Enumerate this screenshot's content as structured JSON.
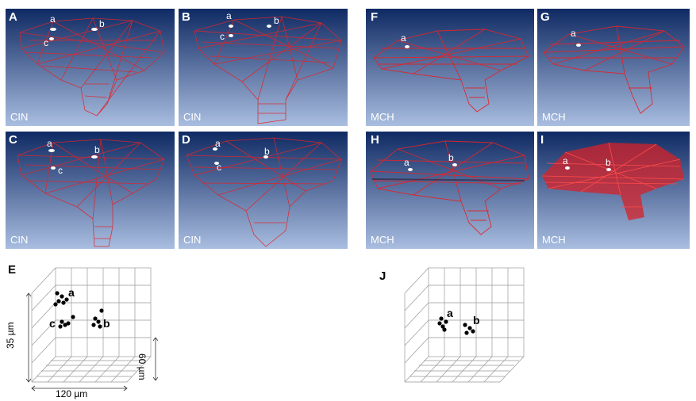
{
  "panels": [
    {
      "id": "A",
      "tag": "CIN",
      "marks": [
        "a",
        "b",
        "c"
      ]
    },
    {
      "id": "B",
      "tag": "CIN",
      "marks": [
        "a",
        "b",
        "c"
      ]
    },
    {
      "id": "C",
      "tag": "CIN",
      "marks": [
        "a",
        "b",
        "c"
      ]
    },
    {
      "id": "D",
      "tag": "CIN",
      "marks": [
        "a",
        "b",
        "c"
      ]
    },
    {
      "id": "F",
      "tag": "MCH",
      "marks": [
        "a"
      ]
    },
    {
      "id": "G",
      "tag": "MCH",
      "marks": [
        "a"
      ]
    },
    {
      "id": "H",
      "tag": "MCH",
      "marks": [
        "a",
        "b"
      ]
    },
    {
      "id": "I",
      "tag": "MCH",
      "marks": [
        "a",
        "b"
      ]
    }
  ],
  "plot_e": {
    "id": "E",
    "labels": [
      "a",
      "c",
      "b"
    ],
    "z_label": "35 µm",
    "x_label": "120 µm",
    "y_label": "60 µm"
  },
  "plot_j": {
    "id": "J",
    "labels": [
      "a",
      "b"
    ]
  },
  "colors": {
    "bg_top": "#0f2a63",
    "bg_bottom": "#a9bde0",
    "wire": "#e0242a",
    "dark": "#2a1d3a"
  }
}
